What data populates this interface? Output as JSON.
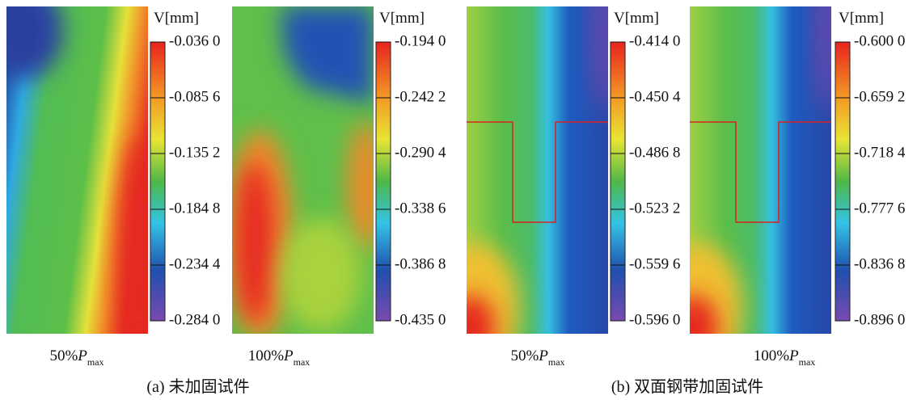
{
  "panels": [
    {
      "colorbar_title": "V[mm]",
      "ticks": [
        "-0.036 0",
        "-0.085 6",
        "-0.135 2",
        "-0.184 8",
        "-0.234 4",
        "-0.284 0"
      ],
      "label": {
        "percent": "50%",
        "symbol": "P",
        "subscript": "max"
      }
    },
    {
      "colorbar_title": "V[mm]",
      "ticks": [
        "-0.194 0",
        "-0.242 2",
        "-0.290 4",
        "-0.338 6",
        "-0.386 8",
        "-0.435 0"
      ],
      "label": {
        "percent": "100%",
        "symbol": "P",
        "subscript": "max"
      }
    },
    {
      "colorbar_title": "V[mm]",
      "ticks": [
        "-0.414 0",
        "-0.450 4",
        "-0.486 8",
        "-0.523 2",
        "-0.559 6",
        "-0.596 0"
      ],
      "label": {
        "percent": "50%",
        "symbol": "P",
        "subscript": "max"
      }
    },
    {
      "colorbar_title": "V[mm]",
      "ticks": [
        "-0.600 0",
        "-0.659 2",
        "-0.718 4",
        "-0.777 6",
        "-0.836 8",
        "-0.896 0"
      ],
      "label": {
        "percent": "100%",
        "symbol": "P",
        "subscript": "max"
      }
    }
  ],
  "groups": [
    "(a) 未加固试件",
    "(b) 双面钢带加固试件"
  ]
}
